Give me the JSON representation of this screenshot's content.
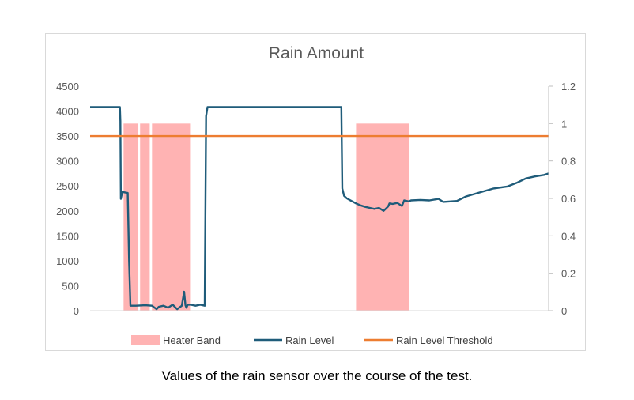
{
  "chart_data": {
    "type": "line",
    "title": "Rain Amount",
    "primary_axis": {
      "ylim": [
        0,
        4500
      ],
      "ticks": [
        "0",
        "500",
        "1000",
        "1500",
        "2000",
        "2500",
        "3000",
        "3500",
        "4000",
        "4500"
      ]
    },
    "secondary_axis": {
      "ylim": [
        0,
        1.2
      ],
      "ticks": [
        "0",
        "0.2",
        "0.4",
        "0.6",
        "0.8",
        "1",
        "1.2"
      ]
    },
    "x_range": [
      0,
      100
    ],
    "grid": false,
    "legend_position": "bottom",
    "series": [
      {
        "name": "Heater Band",
        "kind": "band",
        "axis": "secondary",
        "color": "#ffb3b3",
        "value": 1,
        "segments": [
          [
            7.3,
            10.5
          ],
          [
            10.9,
            13.0
          ],
          [
            13.5,
            21.8
          ],
          [
            58.0,
            69.5
          ]
        ]
      },
      {
        "name": "Rain Level",
        "kind": "line",
        "axis": "primary",
        "color": "#1f5c7a",
        "x": [
          0,
          6.5,
          6.6,
          6.7,
          7.0,
          8.2,
          8.5,
          8.8,
          10,
          12,
          13.5,
          14.5,
          15,
          16,
          17,
          18,
          19,
          20,
          20.5,
          20.8,
          21,
          21.3,
          22,
          23,
          24,
          25,
          25.3,
          25.6,
          27,
          35,
          45,
          54.8,
          55.0,
          55.4,
          56,
          57,
          58,
          59,
          60,
          61,
          62,
          63,
          64,
          65,
          65.3,
          66,
          67,
          68,
          68.5,
          69.5,
          70,
          72,
          74,
          76,
          77,
          80,
          82,
          85,
          88,
          91,
          93,
          95,
          97,
          99,
          100
        ],
        "y": [
          4080,
          4080,
          3800,
          2240,
          2380,
          2360,
          1000,
          100,
          100,
          110,
          100,
          30,
          80,
          100,
          60,
          120,
          30,
          100,
          380,
          110,
          60,
          120,
          120,
          100,
          120,
          100,
          3900,
          4080,
          4080,
          4080,
          4080,
          4080,
          2450,
          2300,
          2250,
          2200,
          2150,
          2110,
          2080,
          2060,
          2040,
          2060,
          2000,
          2090,
          2150,
          2140,
          2160,
          2100,
          2210,
          2190,
          2210,
          2220,
          2210,
          2240,
          2180,
          2200,
          2290,
          2370,
          2450,
          2490,
          2560,
          2650,
          2690,
          2720,
          2750
        ]
      },
      {
        "name": "Rain Level Threshold",
        "kind": "hline",
        "axis": "primary",
        "color": "#ed7d31",
        "y": 3500
      }
    ]
  },
  "caption": "Values of the rain sensor over the course of the test."
}
